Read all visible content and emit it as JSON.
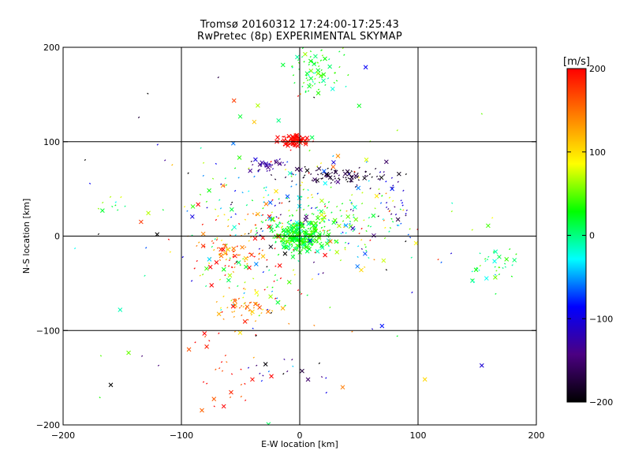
{
  "chart_data": {
    "type": "scatter",
    "title": "Tromsø 20160312 17:24:00-17:25:43",
    "subtitle": "RwPretec (8p) EXPERIMENTAL SKYMAP",
    "xlabel": "E-W location [km]",
    "ylabel": "N-S location [km]",
    "xlim": [
      -200,
      200
    ],
    "ylim": [
      -200,
      200
    ],
    "xticks": [
      -200,
      -100,
      0,
      100,
      200
    ],
    "yticks": [
      -200,
      -100,
      0,
      100,
      200
    ],
    "grid": true,
    "colorbar": {
      "label": "[m/s]",
      "range": [
        -200,
        200
      ],
      "ticks": [
        200,
        100,
        0,
        -100,
        -200
      ],
      "colors": [
        "#000000",
        "#4b0082",
        "#0000ff",
        "#00ffff",
        "#00ff00",
        "#ffff00",
        "#ff8000",
        "#ff0000"
      ]
    },
    "clusters": [
      {
        "cx": 0,
        "cy": 0,
        "sx": 10,
        "sy": 8,
        "n": 380,
        "v": 25,
        "vs": 18
      },
      {
        "cx": 30,
        "cy": 15,
        "sx": 25,
        "sy": 15,
        "n": 90,
        "v": 40,
        "vs": 40
      },
      {
        "cx": -5,
        "cy": 101,
        "sx": 6,
        "sy": 3,
        "n": 120,
        "v": 200,
        "vs": 10
      },
      {
        "cx": 12,
        "cy": 175,
        "sx": 10,
        "sy": 12,
        "n": 80,
        "v": 30,
        "vs": 25
      },
      {
        "cx": 35,
        "cy": 65,
        "sx": 22,
        "sy": 4,
        "n": 90,
        "v": -180,
        "vs": 20
      },
      {
        "cx": -25,
        "cy": 75,
        "sx": 10,
        "sy": 4,
        "n": 35,
        "v": -130,
        "vs": 20
      },
      {
        "cx": -60,
        "cy": -15,
        "sx": 14,
        "sy": 10,
        "n": 80,
        "v": 150,
        "vs": 40
      },
      {
        "cx": -50,
        "cy": -75,
        "sx": 10,
        "sy": 8,
        "n": 40,
        "v": 130,
        "vs": 30
      },
      {
        "cx": -40,
        "cy": -50,
        "sx": 20,
        "sy": 25,
        "n": 70,
        "v": 80,
        "vs": 120
      },
      {
        "cx": -60,
        "cy": -150,
        "sx": 15,
        "sy": 20,
        "n": 30,
        "v": 180,
        "vs": 40
      },
      {
        "cx": -20,
        "cy": -150,
        "sx": 25,
        "sy": 10,
        "n": 18,
        "v": -150,
        "vs": 60
      },
      {
        "cx": 165,
        "cy": -30,
        "sx": 12,
        "sy": 10,
        "n": 35,
        "v": 10,
        "vs": 30
      },
      {
        "cx": -30,
        "cy": 30,
        "sx": 45,
        "sy": 30,
        "n": 140,
        "v": 20,
        "vs": 120
      },
      {
        "cx": 60,
        "cy": 20,
        "sx": 40,
        "sy": 35,
        "n": 70,
        "v": 0,
        "vs": 90
      },
      {
        "cx": 75,
        "cy": 45,
        "sx": 10,
        "sy": 15,
        "n": 25,
        "v": -130,
        "vs": 40
      },
      {
        "cx": -160,
        "cy": 30,
        "sx": 6,
        "sy": 8,
        "n": 10,
        "v": 20,
        "vs": 30
      },
      {
        "cx": 0,
        "cy": 0,
        "sx": 120,
        "sy": 110,
        "n": 120,
        "v": 0,
        "vs": 150
      }
    ]
  }
}
